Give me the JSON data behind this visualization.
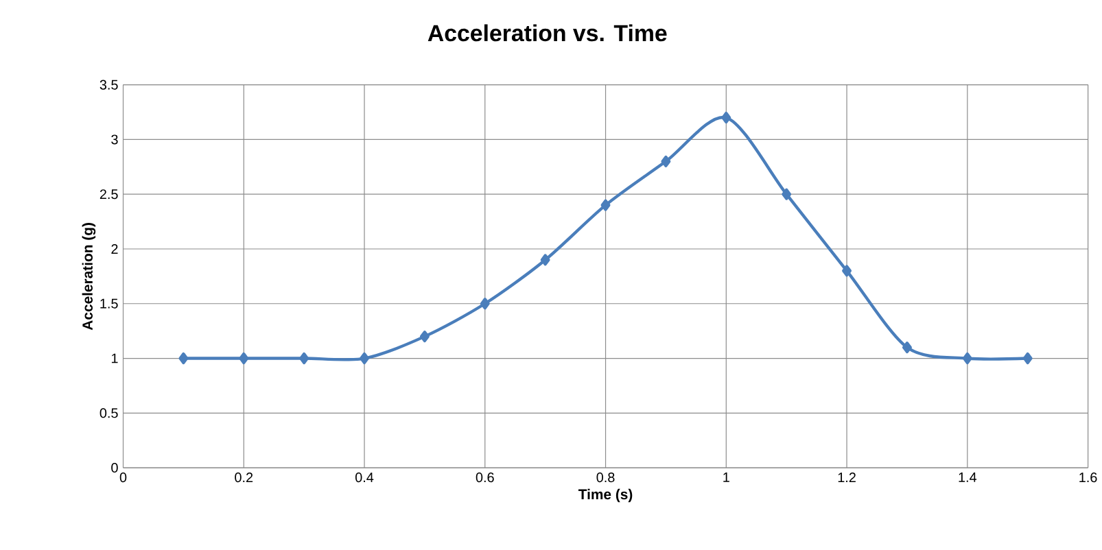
{
  "chart_data": {
    "type": "line",
    "title": "Acceleration vs. Time",
    "xlabel": "Time (s)",
    "ylabel": "Acceleration (g)",
    "x": [
      0.1,
      0.2,
      0.3,
      0.4,
      0.5,
      0.6,
      0.7,
      0.8,
      0.9,
      1.0,
      1.1,
      1.2,
      1.3,
      1.4,
      1.5
    ],
    "series": [
      {
        "color": "#4a7ebb",
        "values": [
          1,
          1,
          1,
          1,
          1.2,
          1.5,
          1.9,
          2.4,
          2.8,
          3.2,
          2.5,
          1.8,
          1.1,
          1,
          1
        ]
      }
    ],
    "xlim": [
      0,
      1.6
    ],
    "xticks": [
      0,
      0.2,
      0.4,
      0.6,
      0.8,
      1,
      1.2,
      1.4,
      1.6
    ],
    "ylim": [
      0,
      3.5
    ],
    "yticks": [
      0,
      0.5,
      1,
      1.5,
      2,
      2.5,
      3,
      3.5
    ],
    "grid": true,
    "marker": "diamond",
    "line_style": "solid"
  }
}
